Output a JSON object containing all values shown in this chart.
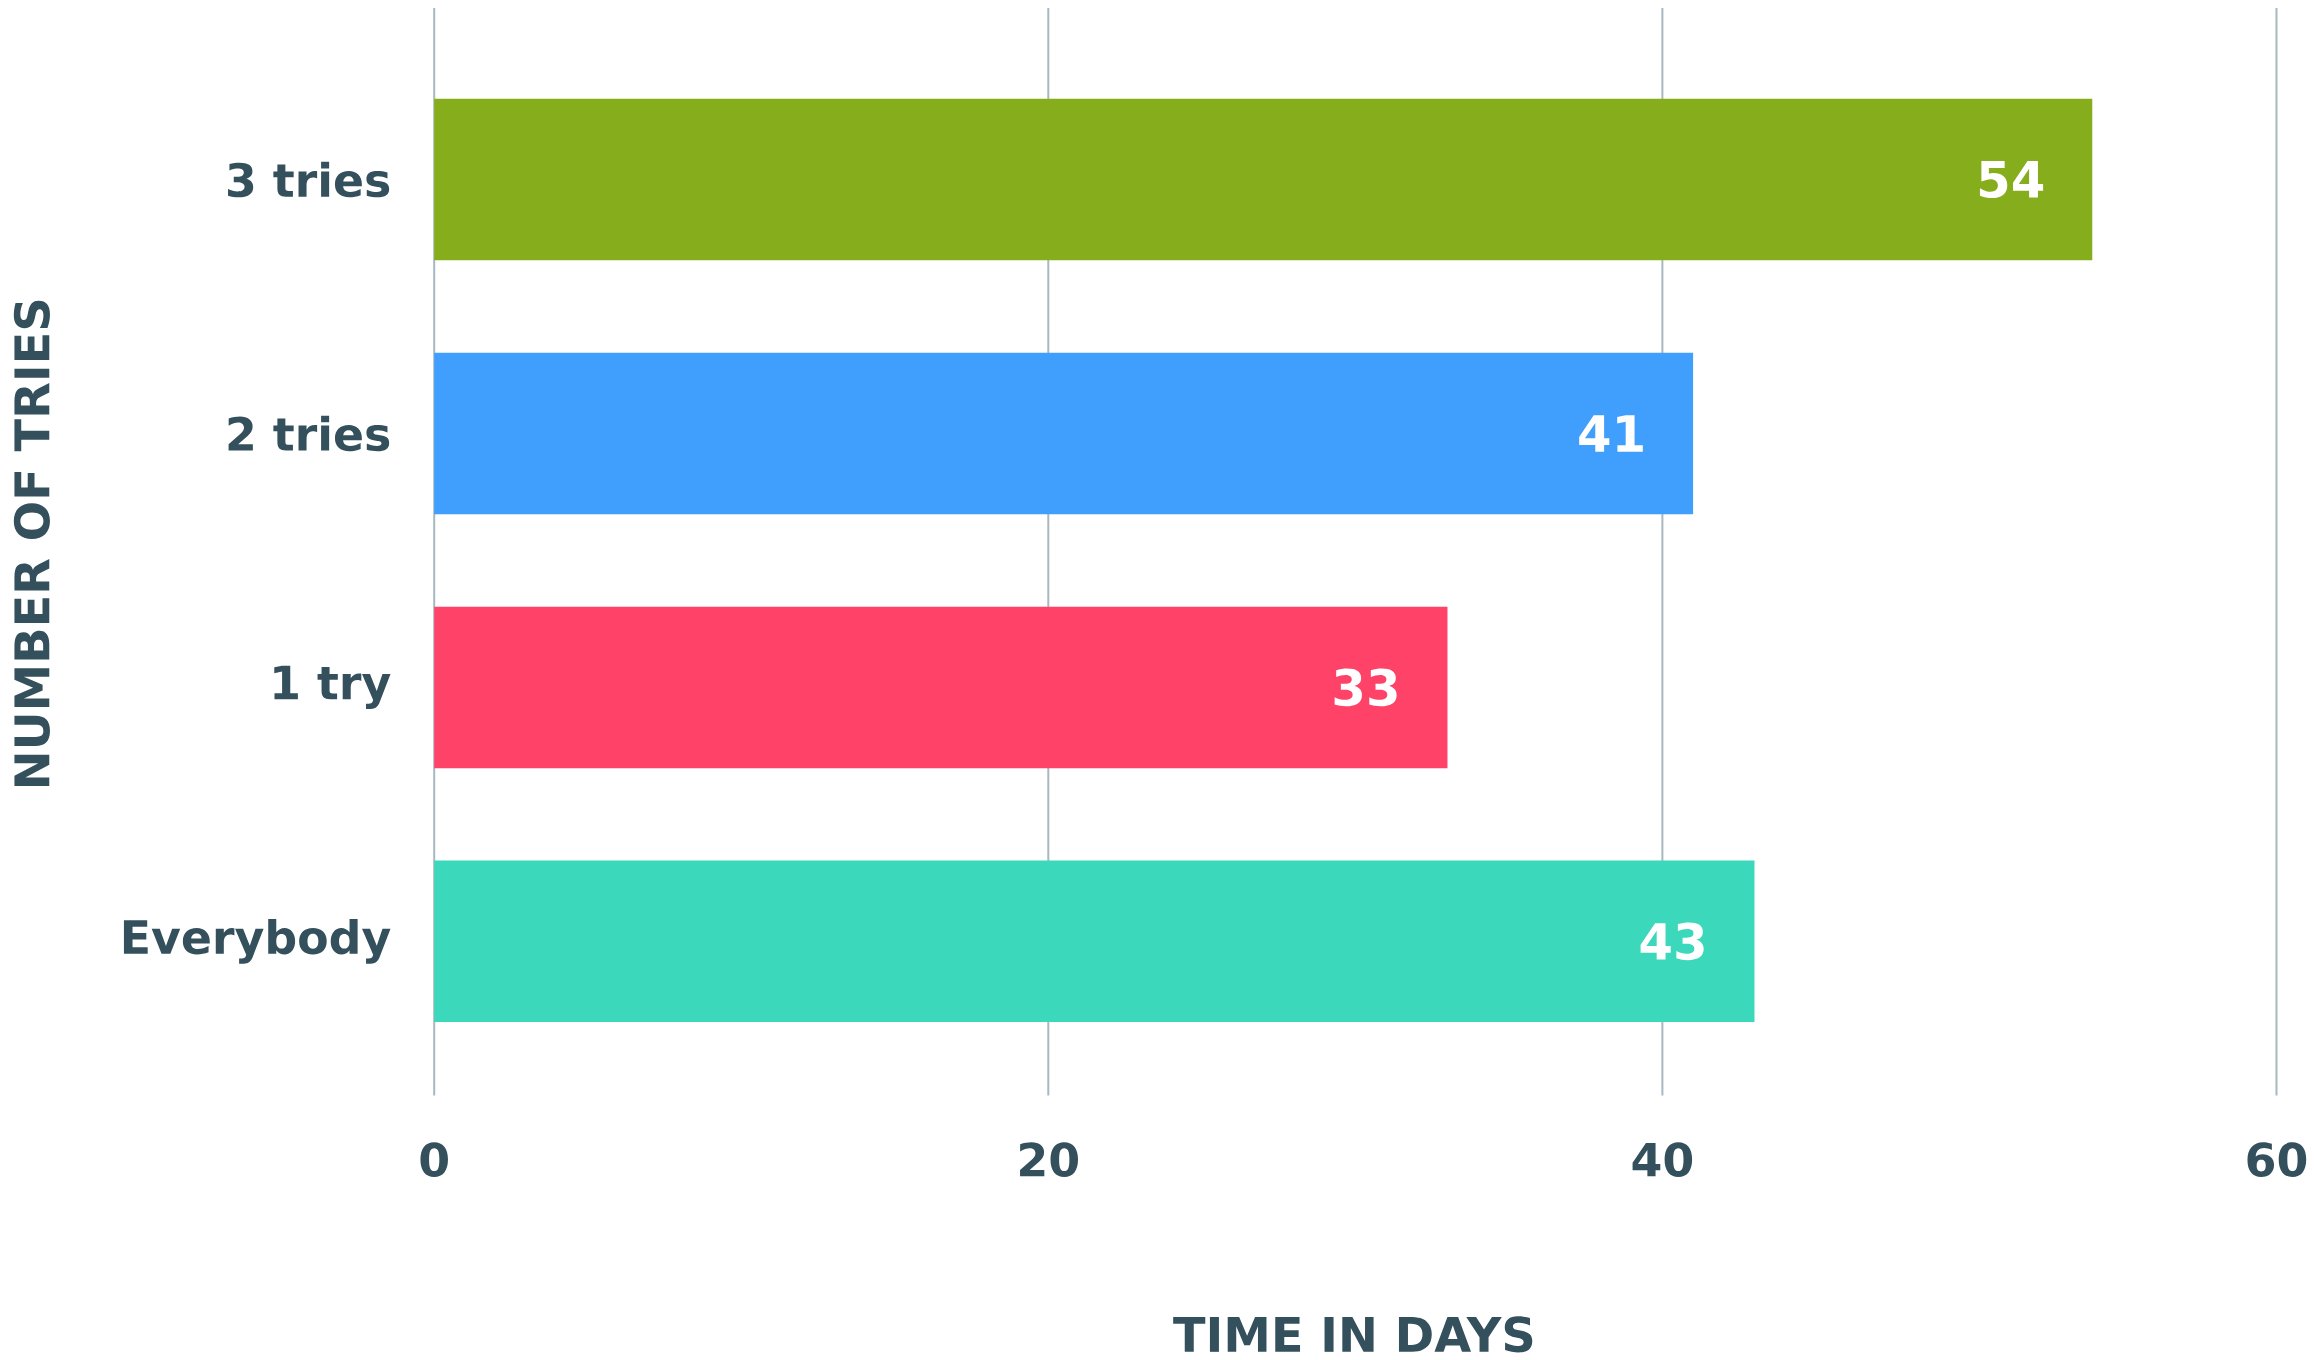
{
  "chart_data": {
    "type": "bar",
    "orientation": "horizontal",
    "xlabel": "TIME IN DAYS",
    "ylabel": "NUMBER OF TRIES",
    "categories": [
      "3 tries",
      "2 tries",
      "1 try",
      "Everybody"
    ],
    "values": [
      54,
      41,
      33,
      43
    ],
    "colors": [
      "#86ae1c",
      "#409efd",
      "#ff4268",
      "#3cd8bb"
    ],
    "xlim": [
      0,
      60
    ],
    "xticks": [
      0,
      20,
      40,
      60
    ],
    "grid": "x",
    "data_labels": true
  }
}
